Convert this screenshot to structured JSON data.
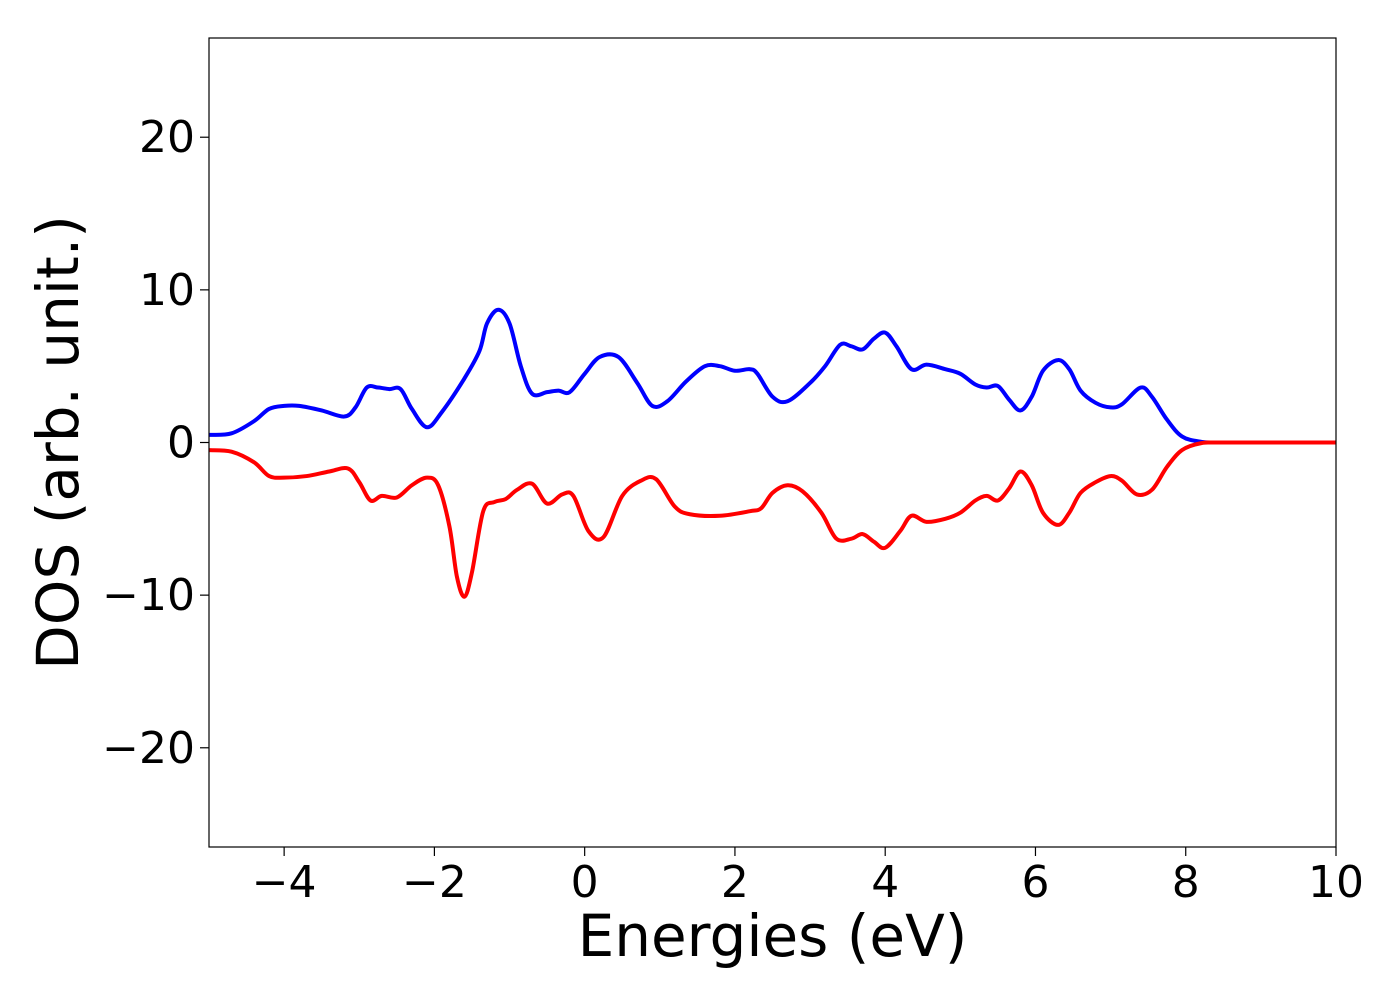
{
  "chart_data": {
    "type": "line",
    "title": "",
    "xlabel": "Energies (eV)",
    "ylabel": "DOS (arb. unit.)",
    "xlim": [
      -5,
      10
    ],
    "ylim": [
      -26.5,
      26.5
    ],
    "xticks": [
      -4,
      -2,
      0,
      2,
      4,
      6,
      8,
      10
    ],
    "xtick_labels": [
      "−4",
      "−2",
      "0",
      "2",
      "4",
      "6",
      "8",
      "10"
    ],
    "yticks": [
      -20,
      -10,
      0,
      10,
      20
    ],
    "ytick_labels": [
      "−20",
      "−10",
      "0",
      "10",
      "20"
    ],
    "grid": false,
    "legend": "none",
    "series": [
      {
        "color": "#0000ff",
        "points": [
          [
            -5.0,
            0.5
          ],
          [
            -4.7,
            0.6
          ],
          [
            -4.4,
            1.4
          ],
          [
            -4.2,
            2.2
          ],
          [
            -4.0,
            2.4
          ],
          [
            -3.8,
            2.4
          ],
          [
            -3.5,
            2.1
          ],
          [
            -3.2,
            1.7
          ],
          [
            -3.05,
            2.3
          ],
          [
            -2.9,
            3.6
          ],
          [
            -2.75,
            3.6
          ],
          [
            -2.6,
            3.5
          ],
          [
            -2.45,
            3.5
          ],
          [
            -2.3,
            2.2
          ],
          [
            -2.1,
            1.0
          ],
          [
            -1.9,
            2.0
          ],
          [
            -1.6,
            4.2
          ],
          [
            -1.4,
            6.0
          ],
          [
            -1.3,
            7.8
          ],
          [
            -1.15,
            8.7
          ],
          [
            -1.0,
            7.8
          ],
          [
            -0.85,
            5.0
          ],
          [
            -0.7,
            3.2
          ],
          [
            -0.5,
            3.3
          ],
          [
            -0.35,
            3.4
          ],
          [
            -0.2,
            3.3
          ],
          [
            0.0,
            4.5
          ],
          [
            0.2,
            5.6
          ],
          [
            0.45,
            5.6
          ],
          [
            0.7,
            3.9
          ],
          [
            0.9,
            2.4
          ],
          [
            1.1,
            2.7
          ],
          [
            1.35,
            4.0
          ],
          [
            1.6,
            5.0
          ],
          [
            1.8,
            5.0
          ],
          [
            2.0,
            4.7
          ],
          [
            2.2,
            4.8
          ],
          [
            2.3,
            4.5
          ],
          [
            2.5,
            3.0
          ],
          [
            2.7,
            2.7
          ],
          [
            3.0,
            3.9
          ],
          [
            3.2,
            5.0
          ],
          [
            3.4,
            6.4
          ],
          [
            3.55,
            6.3
          ],
          [
            3.7,
            6.1
          ],
          [
            3.85,
            6.8
          ],
          [
            4.0,
            7.2
          ],
          [
            4.15,
            6.3
          ],
          [
            4.35,
            4.8
          ],
          [
            4.55,
            5.1
          ],
          [
            4.8,
            4.8
          ],
          [
            5.0,
            4.5
          ],
          [
            5.2,
            3.8
          ],
          [
            5.35,
            3.6
          ],
          [
            5.5,
            3.7
          ],
          [
            5.65,
            2.8
          ],
          [
            5.8,
            2.1
          ],
          [
            5.95,
            3.0
          ],
          [
            6.1,
            4.7
          ],
          [
            6.3,
            5.4
          ],
          [
            6.45,
            4.8
          ],
          [
            6.6,
            3.4
          ],
          [
            6.8,
            2.6
          ],
          [
            7.0,
            2.3
          ],
          [
            7.15,
            2.5
          ],
          [
            7.4,
            3.6
          ],
          [
            7.55,
            3.0
          ],
          [
            7.75,
            1.5
          ],
          [
            7.95,
            0.4
          ],
          [
            8.2,
            0.05
          ],
          [
            8.5,
            0.0
          ],
          [
            10.0,
            0.0
          ]
        ]
      },
      {
        "color": "#ff0000",
        "points": [
          [
            -5.0,
            -0.5
          ],
          [
            -4.7,
            -0.6
          ],
          [
            -4.4,
            -1.3
          ],
          [
            -4.2,
            -2.2
          ],
          [
            -4.0,
            -2.3
          ],
          [
            -3.7,
            -2.2
          ],
          [
            -3.4,
            -1.9
          ],
          [
            -3.15,
            -1.7
          ],
          [
            -3.0,
            -2.6
          ],
          [
            -2.85,
            -3.8
          ],
          [
            -2.7,
            -3.5
          ],
          [
            -2.5,
            -3.6
          ],
          [
            -2.3,
            -2.8
          ],
          [
            -2.1,
            -2.3
          ],
          [
            -1.95,
            -2.8
          ],
          [
            -1.8,
            -5.5
          ],
          [
            -1.7,
            -8.8
          ],
          [
            -1.6,
            -10.1
          ],
          [
            -1.5,
            -8.5
          ],
          [
            -1.35,
            -4.5
          ],
          [
            -1.2,
            -3.9
          ],
          [
            -1.05,
            -3.7
          ],
          [
            -0.9,
            -3.1
          ],
          [
            -0.7,
            -2.7
          ],
          [
            -0.5,
            -4.0
          ],
          [
            -0.3,
            -3.4
          ],
          [
            -0.15,
            -3.5
          ],
          [
            0.05,
            -5.8
          ],
          [
            0.25,
            -6.2
          ],
          [
            0.5,
            -3.5
          ],
          [
            0.75,
            -2.5
          ],
          [
            0.95,
            -2.4
          ],
          [
            1.2,
            -4.2
          ],
          [
            1.4,
            -4.7
          ],
          [
            1.8,
            -4.8
          ],
          [
            2.2,
            -4.5
          ],
          [
            2.35,
            -4.3
          ],
          [
            2.5,
            -3.3
          ],
          [
            2.7,
            -2.8
          ],
          [
            2.9,
            -3.2
          ],
          [
            3.15,
            -4.6
          ],
          [
            3.35,
            -6.3
          ],
          [
            3.55,
            -6.3
          ],
          [
            3.7,
            -6.0
          ],
          [
            3.85,
            -6.5
          ],
          [
            4.0,
            -6.9
          ],
          [
            4.2,
            -5.8
          ],
          [
            4.35,
            -4.8
          ],
          [
            4.55,
            -5.2
          ],
          [
            4.8,
            -5.0
          ],
          [
            5.0,
            -4.6
          ],
          [
            5.2,
            -3.8
          ],
          [
            5.35,
            -3.5
          ],
          [
            5.5,
            -3.8
          ],
          [
            5.65,
            -3.0
          ],
          [
            5.8,
            -1.9
          ],
          [
            5.95,
            -2.8
          ],
          [
            6.1,
            -4.6
          ],
          [
            6.3,
            -5.4
          ],
          [
            6.45,
            -4.6
          ],
          [
            6.6,
            -3.3
          ],
          [
            6.8,
            -2.6
          ],
          [
            7.0,
            -2.2
          ],
          [
            7.15,
            -2.5
          ],
          [
            7.35,
            -3.4
          ],
          [
            7.55,
            -3.1
          ],
          [
            7.75,
            -1.6
          ],
          [
            7.95,
            -0.5
          ],
          [
            8.2,
            -0.05
          ],
          [
            8.5,
            0.0
          ],
          [
            10.0,
            0.0
          ]
        ]
      }
    ]
  }
}
